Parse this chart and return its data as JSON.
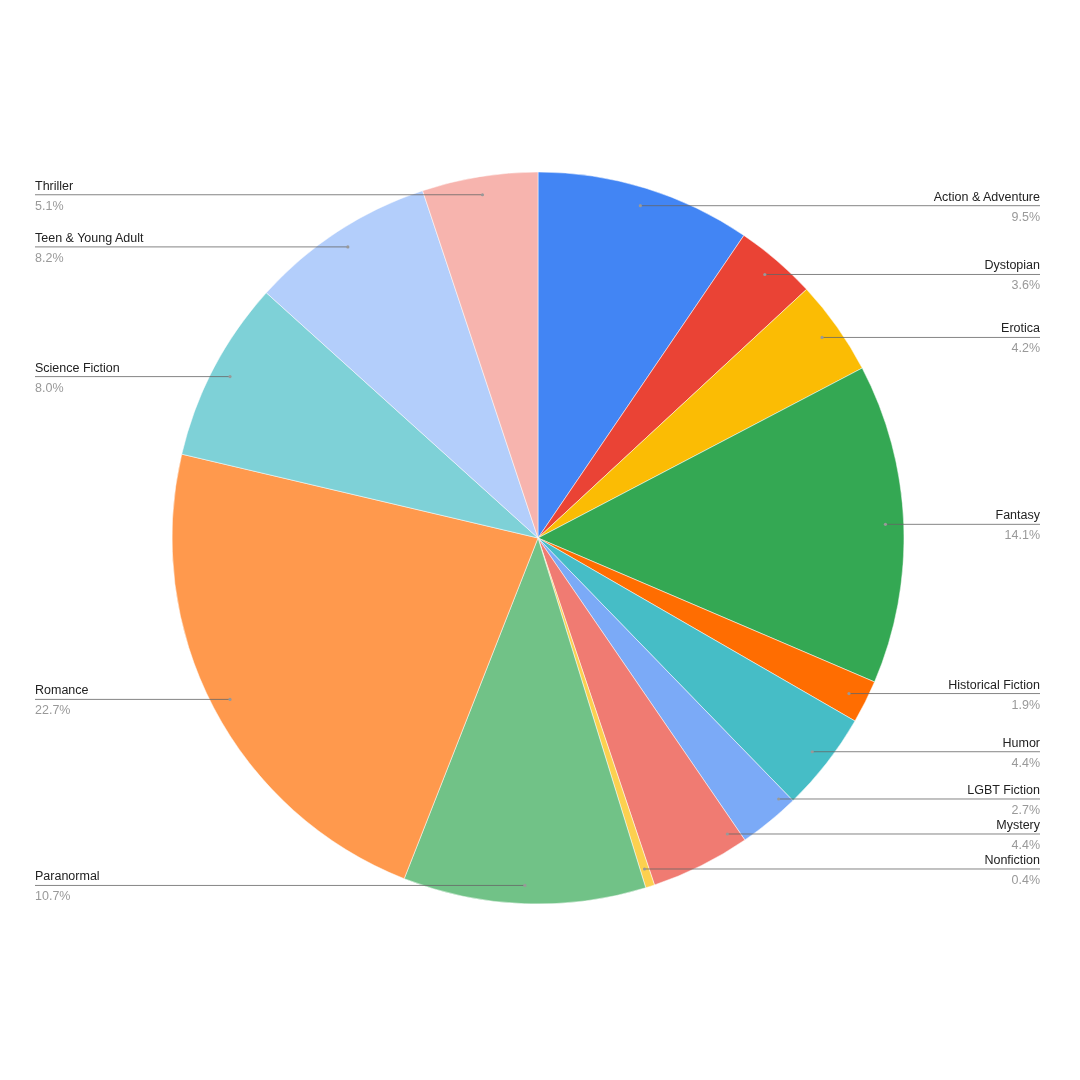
{
  "chart_data": {
    "type": "pie",
    "categories": [
      "Action & Adventure",
      "Dystopian",
      "Erotica",
      "Fantasy",
      "Historical Fiction",
      "Humor",
      "LGBT Fiction",
      "Mystery",
      "Nonfiction",
      "Paranormal",
      "Romance",
      "Science Fiction",
      "Teen & Young Adult",
      "Thriller"
    ],
    "values": [
      9.5,
      3.6,
      4.2,
      14.1,
      1.9,
      4.4,
      2.7,
      4.4,
      0.4,
      10.7,
      22.7,
      8.0,
      8.2,
      5.1
    ],
    "value_labels": [
      "9.5%",
      "3.6%",
      "4.2%",
      "14.1%",
      "1.9%",
      "4.4%",
      "2.7%",
      "4.4%",
      "0.4%",
      "10.7%",
      "22.7%",
      "8.0%",
      "8.2%",
      "5.1%"
    ],
    "colors": [
      "#4285f4",
      "#ea4335",
      "#fbbc04",
      "#34a853",
      "#ff6d01",
      "#46bdc6",
      "#7baaf7",
      "#f07b72",
      "#fcd04f",
      "#71c287",
      "#ff994d",
      "#7ed1d7",
      "#b3cefb",
      "#f7b4ae"
    ]
  }
}
